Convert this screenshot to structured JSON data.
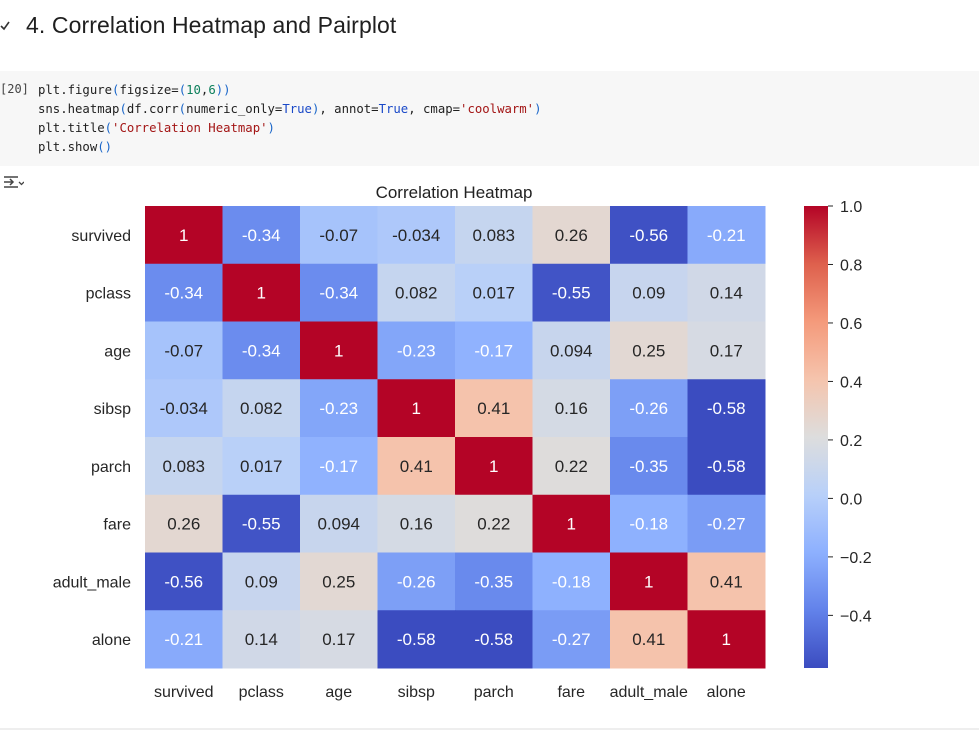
{
  "section": {
    "title": "4. Correlation Heatmap and Pairplot"
  },
  "cell": {
    "execution_count": "[20]",
    "code_lines": [
      [
        {
          "t": "plt.figure",
          "c": "fn"
        },
        {
          "t": "(",
          "c": "paren"
        },
        {
          "t": "figsize=",
          "c": "fn"
        },
        {
          "t": "(",
          "c": "paren"
        },
        {
          "t": "10",
          "c": "num"
        },
        {
          "t": ",",
          "c": "fn"
        },
        {
          "t": "6",
          "c": "num"
        },
        {
          "t": "))",
          "c": "paren"
        }
      ],
      [
        {
          "t": "sns.heatmap",
          "c": "fn"
        },
        {
          "t": "(",
          "c": "paren"
        },
        {
          "t": "df.corr",
          "c": "fn"
        },
        {
          "t": "(",
          "c": "paren"
        },
        {
          "t": "numeric_only=",
          "c": "fn"
        },
        {
          "t": "True",
          "c": "kw"
        },
        {
          "t": ")",
          "c": "paren"
        },
        {
          "t": ", annot=",
          "c": "fn"
        },
        {
          "t": "True",
          "c": "kw"
        },
        {
          "t": ", cmap=",
          "c": "fn"
        },
        {
          "t": "'coolwarm'",
          "c": "str"
        },
        {
          "t": ")",
          "c": "paren"
        }
      ],
      [
        {
          "t": "plt.title",
          "c": "fn"
        },
        {
          "t": "(",
          "c": "paren"
        },
        {
          "t": "'Correlation Heatmap'",
          "c": "str"
        },
        {
          "t": ")",
          "c": "paren"
        }
      ],
      [
        {
          "t": "plt.show",
          "c": "fn"
        },
        {
          "t": "()",
          "c": "paren"
        }
      ]
    ]
  },
  "chart_data": {
    "type": "heatmap",
    "title": "Correlation Heatmap",
    "cmap": "coolwarm",
    "variables": [
      "survived",
      "pclass",
      "age",
      "sibsp",
      "parch",
      "fare",
      "adult_male",
      "alone"
    ],
    "values": [
      [
        1,
        -0.34,
        -0.07,
        -0.034,
        0.083,
        0.26,
        -0.56,
        -0.21
      ],
      [
        -0.34,
        1,
        -0.34,
        0.082,
        0.017,
        -0.55,
        0.09,
        0.14
      ],
      [
        -0.07,
        -0.34,
        1,
        -0.23,
        -0.17,
        0.094,
        0.25,
        0.17
      ],
      [
        -0.034,
        0.082,
        -0.23,
        1,
        0.41,
        0.16,
        -0.26,
        -0.58
      ],
      [
        0.083,
        0.017,
        -0.17,
        0.41,
        1,
        0.22,
        -0.35,
        -0.58
      ],
      [
        0.26,
        -0.55,
        0.094,
        0.16,
        0.22,
        1,
        -0.18,
        -0.27
      ],
      [
        -0.56,
        0.09,
        0.25,
        -0.26,
        -0.35,
        -0.18,
        1,
        0.41
      ],
      [
        -0.21,
        0.14,
        0.17,
        -0.58,
        -0.58,
        -0.27,
        0.41,
        1
      ]
    ],
    "color_range": [
      -0.58,
      1.0
    ],
    "colorbar_ticks": [
      1.0,
      0.8,
      0.6,
      0.4,
      0.2,
      0.0,
      -0.2,
      -0.4
    ],
    "colorbar_tick_labels": [
      "1.0",
      "0.8",
      "0.6",
      "0.4",
      "0.2",
      "0.0",
      "−0.2",
      "−0.4"
    ]
  },
  "icons": {
    "collapse": "chevron-down-icon",
    "output_toggle": "output-collapse-icon"
  },
  "colors": {
    "cell_background": "#f7f7f7",
    "string": "#a31515",
    "keyword": "#1a49c8",
    "number": "#0b7f5b"
  }
}
